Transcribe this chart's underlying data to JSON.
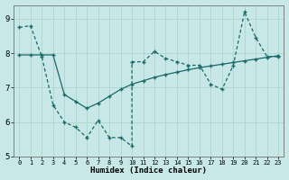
{
  "background_color": "#c8e8e8",
  "grid_color": "#b0d8d0",
  "line_color": "#1a6868",
  "xlim": [
    -0.5,
    23.5
  ],
  "ylim": [
    5,
    9.4
  ],
  "yticks": [
    5,
    6,
    7,
    8,
    9
  ],
  "xticks": [
    0,
    1,
    2,
    3,
    4,
    5,
    6,
    7,
    8,
    9,
    10,
    11,
    12,
    13,
    14,
    15,
    16,
    17,
    18,
    19,
    20,
    21,
    22,
    23
  ],
  "xlabel": "Humidex (Indice chaleur)",
  "line1_x": [
    0,
    1,
    2,
    3,
    4,
    5,
    6,
    7,
    8,
    9,
    10,
    10,
    11,
    12,
    13,
    14,
    15,
    16,
    17,
    18,
    19,
    20,
    21,
    22,
    23
  ],
  "line1_y": [
    8.75,
    8.8,
    7.9,
    6.5,
    6.0,
    5.85,
    5.55,
    6.05,
    5.55,
    5.55,
    5.3,
    7.75,
    7.75,
    8.05,
    7.85,
    7.75,
    7.65,
    7.65,
    7.1,
    6.95,
    7.65,
    9.2,
    8.45,
    7.9,
    7.9
  ],
  "line2_x": [
    0,
    1,
    2,
    3,
    4,
    5,
    6,
    7,
    8,
    9,
    10,
    11,
    12,
    13,
    14,
    15,
    16,
    17,
    18,
    19,
    20,
    21,
    22,
    23
  ],
  "line2_y": [
    7.95,
    7.95,
    7.95,
    7.95,
    6.8,
    6.6,
    6.4,
    6.55,
    6.75,
    6.95,
    7.1,
    7.2,
    7.3,
    7.38,
    7.45,
    7.52,
    7.58,
    7.63,
    7.68,
    7.73,
    7.78,
    7.83,
    7.88,
    7.93
  ]
}
